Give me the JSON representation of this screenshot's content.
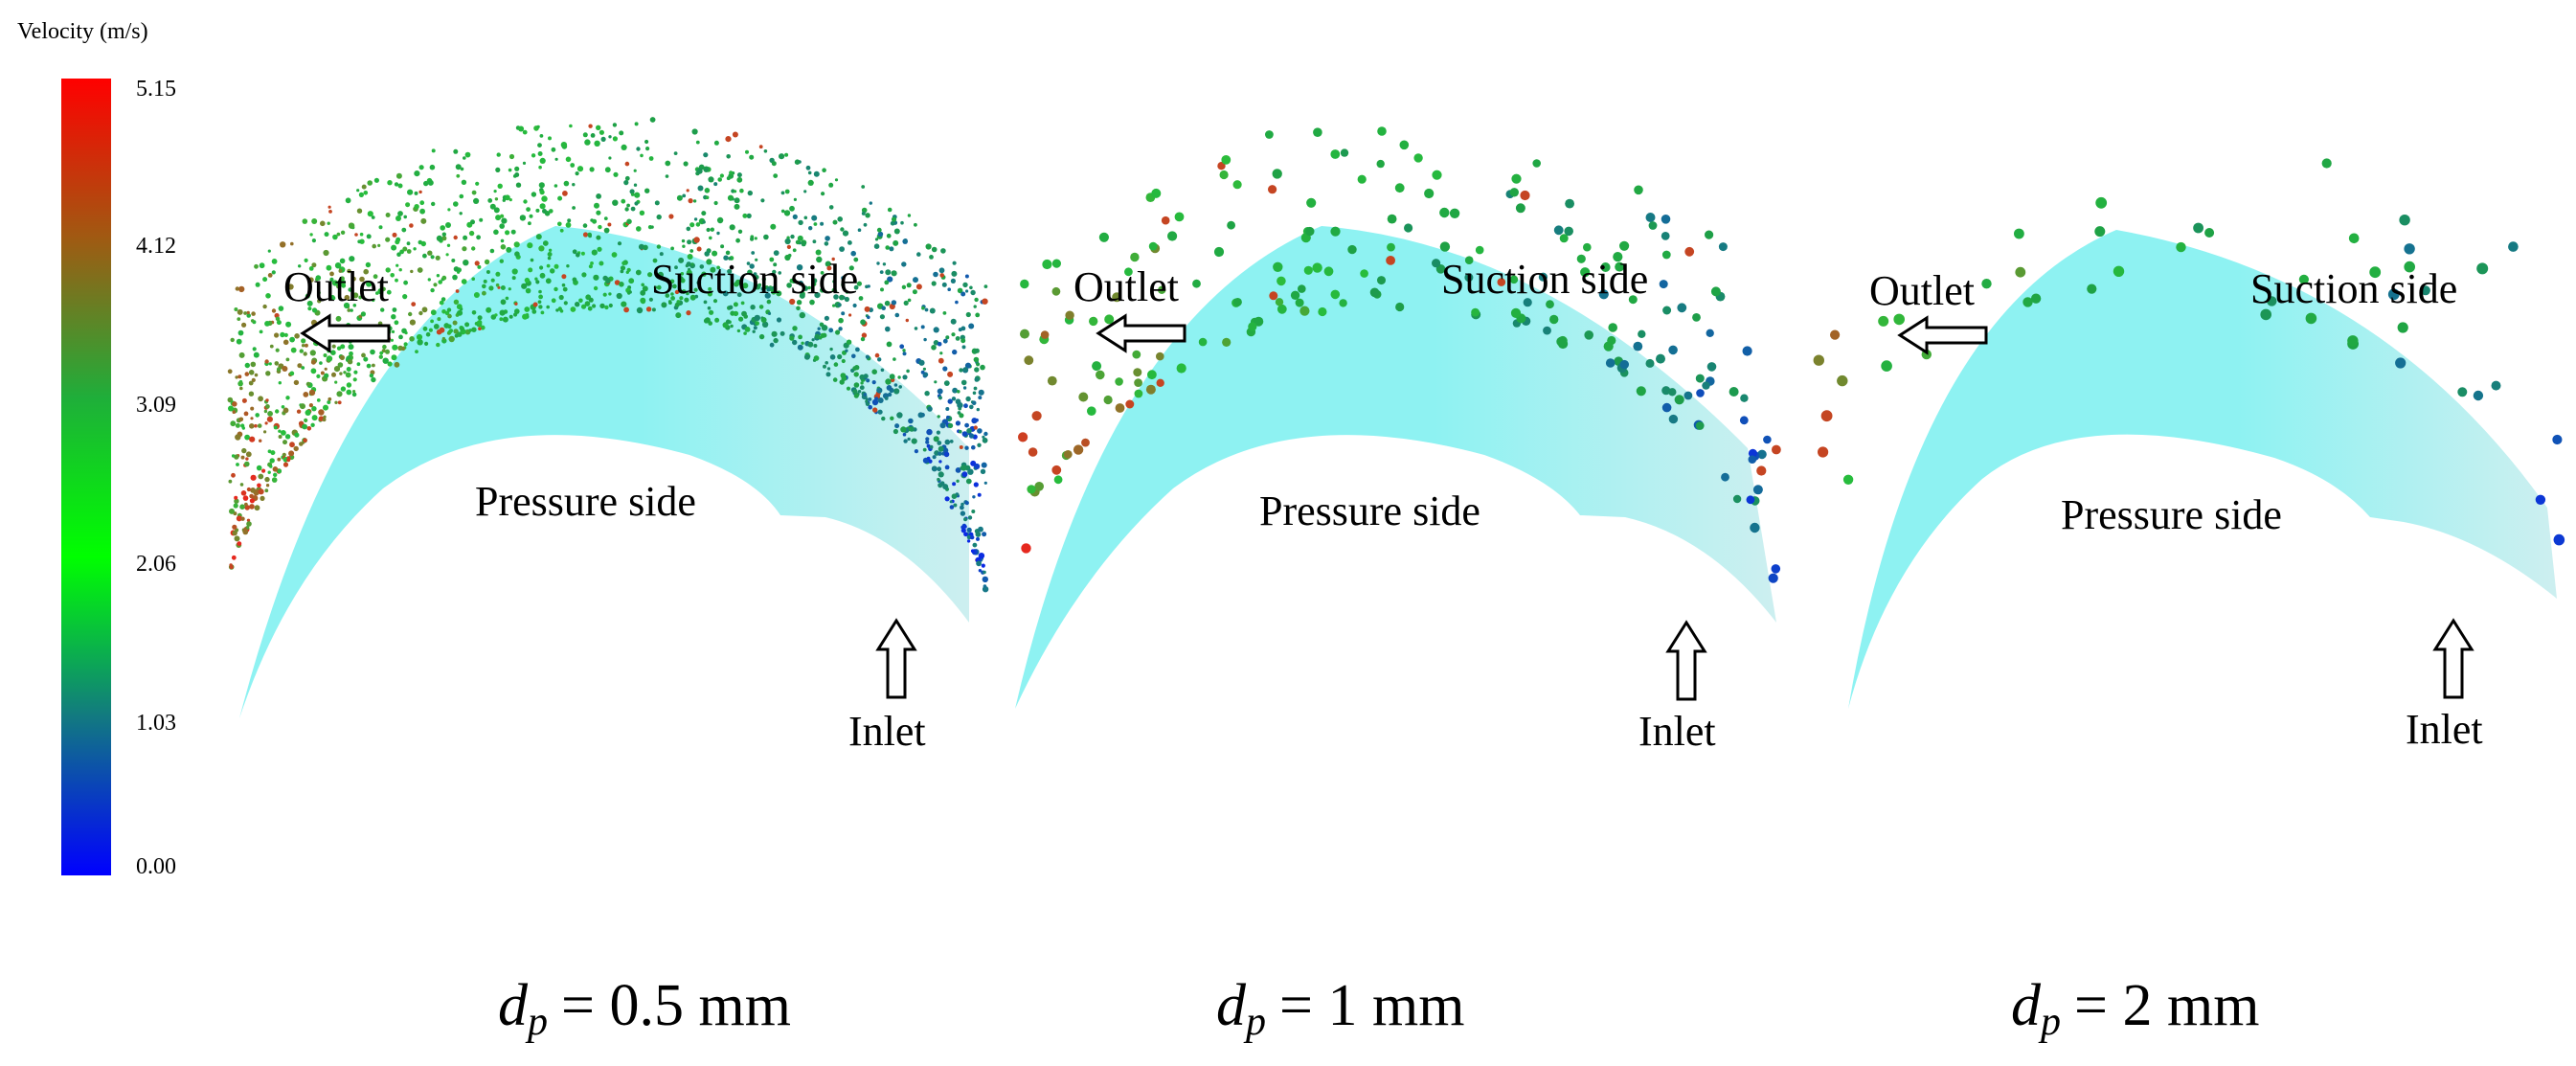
{
  "colorbar": {
    "title": "Velocity (m/s)",
    "ticks": [
      "5.15",
      "4.12",
      "3.09",
      "2.06",
      "1.03",
      "0.00"
    ],
    "colors": [
      "#ff0000",
      "#8a7a1a",
      "#1fb43a",
      "#00ff00",
      "#1a7a7a",
      "#0000ff"
    ]
  },
  "panel_labels": {
    "outlet": "Outlet",
    "inlet": "Inlet",
    "suction_side": "Suction side",
    "pressure_side": "Pressure side"
  },
  "panels": [
    {
      "caption_symbol": "d",
      "caption_sub": "p",
      "caption_value": "= 0.5 mm"
    },
    {
      "caption_symbol": "d",
      "caption_sub": "p",
      "caption_value": "= 1 mm"
    },
    {
      "caption_symbol": "d",
      "caption_sub": "p",
      "caption_value": "= 2 mm"
    }
  ],
  "colors": {
    "passage_fill": "#8ef2f2",
    "passage_fill_light": "#c8f7f7"
  }
}
